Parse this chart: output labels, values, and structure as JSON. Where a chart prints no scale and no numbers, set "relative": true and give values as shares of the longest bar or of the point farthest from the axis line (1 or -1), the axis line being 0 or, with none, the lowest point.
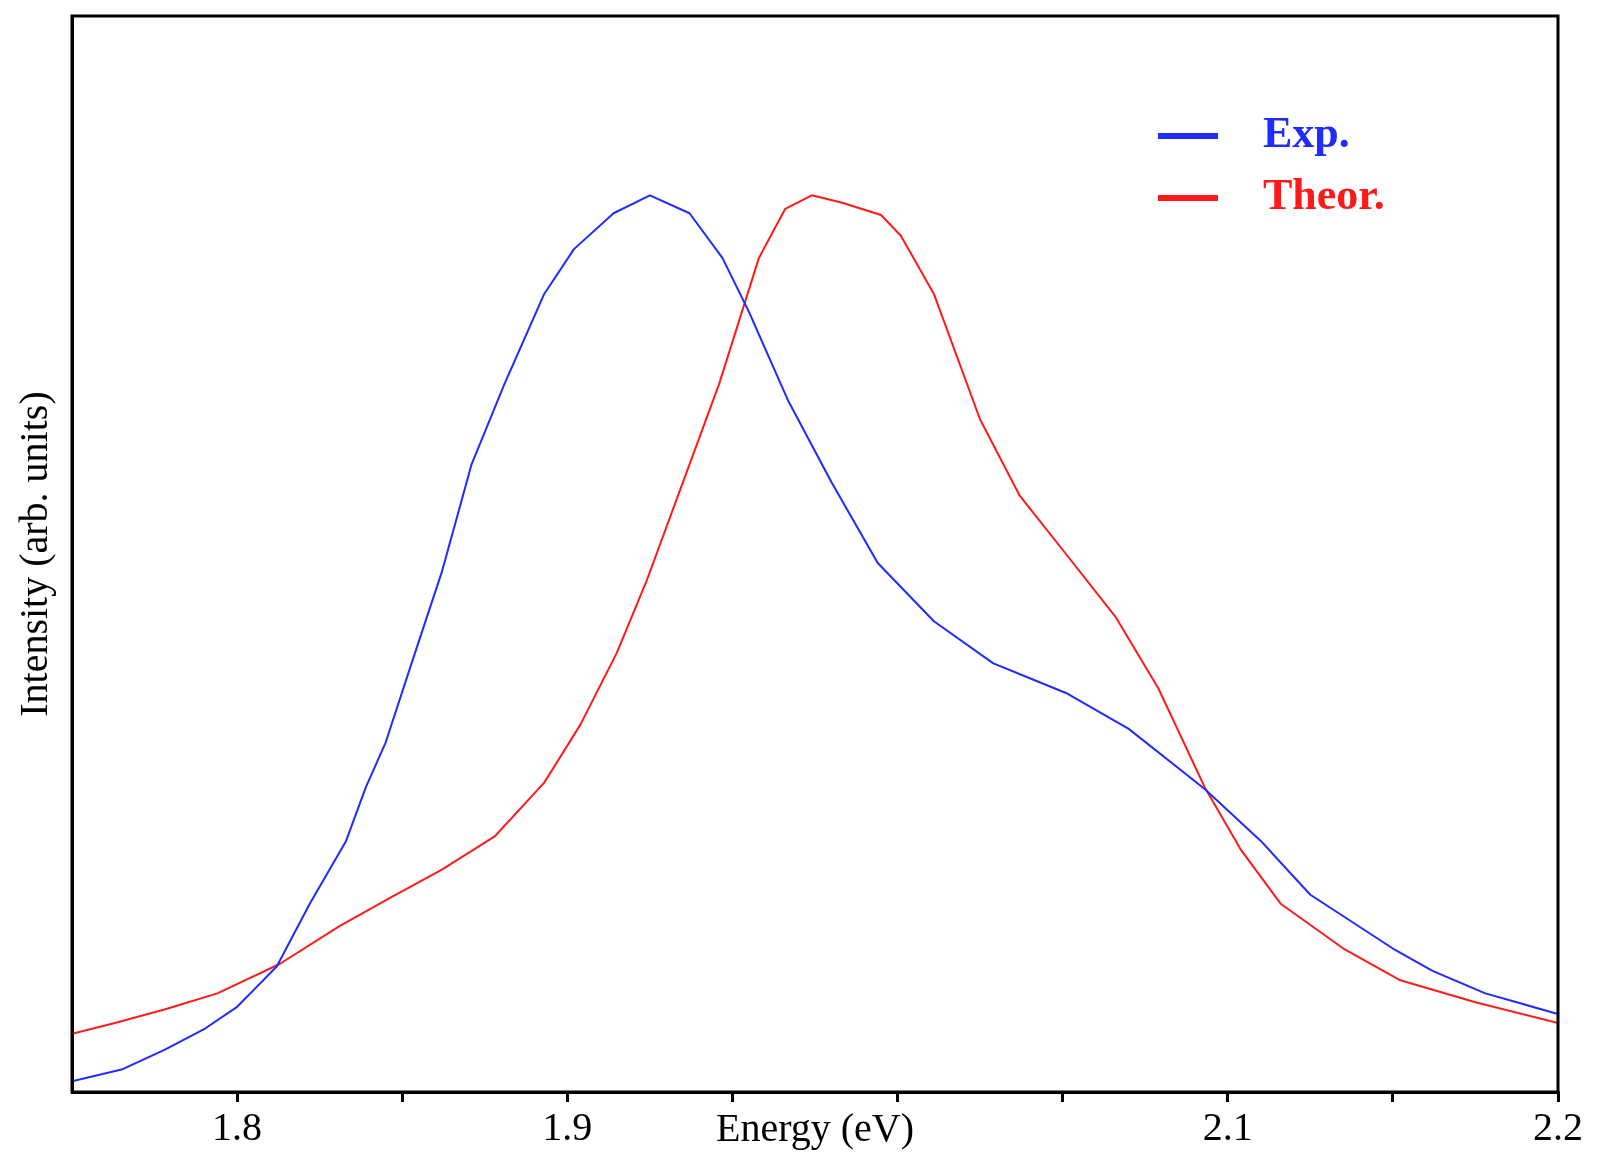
{
  "chart_data": {
    "type": "line",
    "xlabel": "Energy (eV)",
    "ylabel": "Intensity (arb. units)",
    "relative": true,
    "xlim": [
      1.75,
      2.2
    ],
    "xticks": [
      1.8,
      {
        "value": 1.85,
        "label": null
      },
      1.9,
      {
        "value": 1.95,
        "label": null
      },
      {
        "value": 2.0,
        "label": null
      },
      {
        "value": 2.05,
        "label": null
      },
      2.1,
      {
        "value": 2.15,
        "label": null
      },
      2.2
    ],
    "grid": false,
    "legend": "top right",
    "marker": "none",
    "line_style": "solid",
    "series": [
      {
        "name": "Exp.",
        "color": "#1f2bff",
        "x": [
          1.75,
          1.765,
          1.778,
          1.79,
          1.8,
          1.812,
          1.822,
          1.833,
          1.839,
          1.845,
          1.853,
          1.862,
          1.871,
          1.881,
          1.893,
          1.902,
          1.914,
          1.925,
          1.937,
          1.947,
          1.955,
          1.967,
          1.98,
          1.994,
          2.011,
          2.029,
          2.051,
          2.07,
          2.093,
          2.11,
          2.125,
          2.15,
          2.162,
          2.178,
          2.2
        ],
        "values": [
          0.012,
          0.025,
          0.047,
          0.07,
          0.095,
          0.14,
          0.21,
          0.28,
          0.34,
          0.39,
          0.48,
          0.58,
          0.7,
          0.79,
          0.89,
          0.94,
          0.98,
          1.0,
          0.98,
          0.93,
          0.87,
          0.77,
          0.68,
          0.59,
          0.525,
          0.478,
          0.445,
          0.405,
          0.338,
          0.28,
          0.22,
          0.16,
          0.135,
          0.11,
          0.087
        ]
      },
      {
        "name": "Theor.",
        "color": "#ff1a1a",
        "x": [
          1.75,
          1.763,
          1.778,
          1.794,
          1.813,
          1.831,
          1.847,
          1.862,
          1.878,
          1.893,
          1.904,
          1.915,
          1.924,
          1.936,
          1.946,
          1.958,
          1.966,
          1.974,
          1.983,
          1.995,
          2.001,
          2.011,
          2.025,
          2.037,
          2.051,
          2.066,
          2.079,
          2.093,
          2.104,
          2.116,
          2.135,
          2.152,
          2.175,
          2.2
        ],
        "values": [
          0.065,
          0.077,
          0.092,
          0.11,
          0.143,
          0.185,
          0.218,
          0.248,
          0.285,
          0.345,
          0.41,
          0.49,
          0.57,
          0.69,
          0.79,
          0.93,
          0.985,
          1.0,
          0.992,
          0.978,
          0.955,
          0.89,
          0.75,
          0.665,
          0.6,
          0.53,
          0.45,
          0.34,
          0.27,
          0.21,
          0.16,
          0.125,
          0.1,
          0.077
        ]
      }
    ]
  }
}
